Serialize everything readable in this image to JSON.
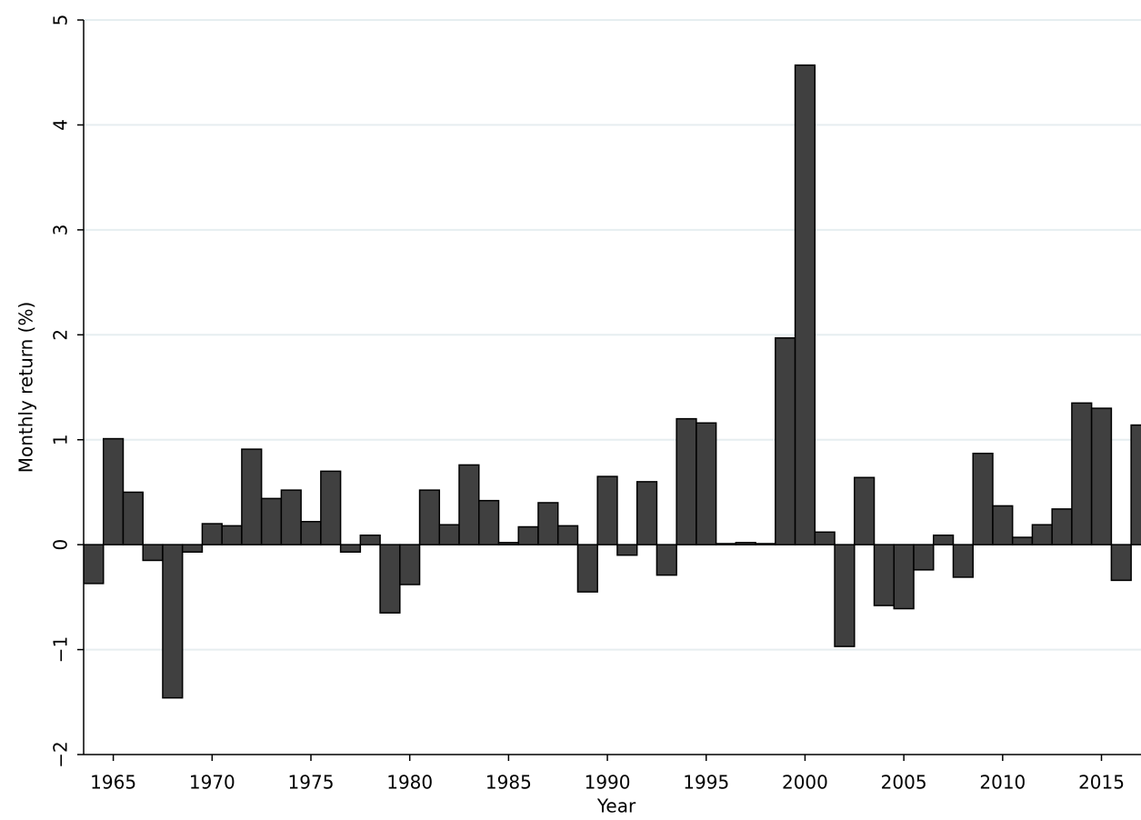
{
  "chart_data": {
    "type": "bar",
    "x_label": "Year",
    "y_label": "Monthly return (%)",
    "x": [
      1964,
      1965,
      1966,
      1967,
      1968,
      1969,
      1970,
      1971,
      1972,
      1973,
      1974,
      1975,
      1976,
      1977,
      1978,
      1979,
      1980,
      1981,
      1982,
      1983,
      1984,
      1985,
      1986,
      1987,
      1988,
      1989,
      1990,
      1991,
      1992,
      1993,
      1994,
      1995,
      1996,
      1997,
      1998,
      1999,
      2000,
      2001,
      2002,
      2003,
      2004,
      2005,
      2006,
      2007,
      2008,
      2009,
      2010,
      2011,
      2012,
      2013,
      2014,
      2015,
      2016,
      2017
    ],
    "values": [
      -0.37,
      1.01,
      0.5,
      -0.15,
      -1.46,
      -0.07,
      0.2,
      0.18,
      0.91,
      0.44,
      0.52,
      0.22,
      0.7,
      -0.07,
      0.09,
      -0.65,
      -0.38,
      0.52,
      0.19,
      0.76,
      0.42,
      0.02,
      0.17,
      0.4,
      0.18,
      -0.45,
      0.65,
      -0.1,
      0.6,
      -0.29,
      1.2,
      1.16,
      0.01,
      0.02,
      0.01,
      1.97,
      4.57,
      0.12,
      -0.97,
      0.64,
      -0.58,
      -0.61,
      -0.24,
      0.09,
      -0.31,
      0.87,
      0.37,
      0.07,
      0.19,
      0.34,
      1.35,
      1.3,
      -0.34,
      1.14
    ],
    "color": "#404040",
    "xlim": [
      1963.5,
      2017
    ],
    "ylim": [
      -2,
      5
    ],
    "xticks": [
      1965,
      1970,
      1975,
      1980,
      1985,
      1990,
      1995,
      2000,
      2005,
      2010,
      2015
    ],
    "yticks": [
      {
        "value": -2,
        "label": "−2"
      },
      {
        "value": -1,
        "label": "−1"
      },
      0,
      1,
      2,
      3,
      4,
      5
    ],
    "grid": true
  }
}
